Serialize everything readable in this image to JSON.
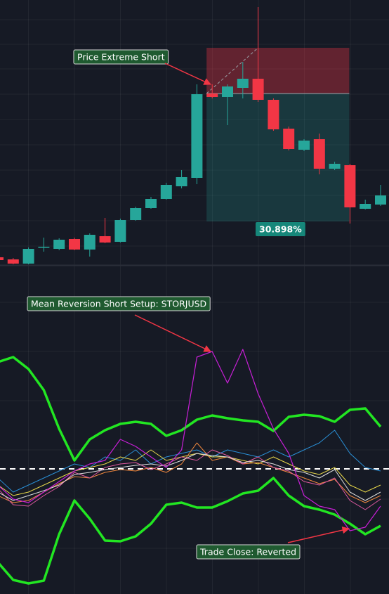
{
  "chart_data": [
    {
      "type": "candlestick",
      "annotation": "Price Extreme Short",
      "up_color": "#26a69a",
      "down_color": "#f23645",
      "ylim": [
        -2,
        375
      ],
      "open": [
        9,
        6,
        0,
        23,
        21,
        35,
        20,
        39,
        31,
        62,
        79,
        92,
        110,
        122,
        242,
        237,
        250,
        263,
        233,
        192,
        162,
        177,
        135,
        140,
        78,
        84
      ],
      "high": [
        11,
        8,
        23,
        37,
        36,
        37,
        43,
        65,
        64,
        81,
        95,
        115,
        133,
        255,
        255,
        255,
        287,
        365,
        235,
        195,
        177,
        185,
        145,
        142,
        91,
        112
      ],
      "low": [
        4,
        -1,
        -1,
        17,
        19,
        19,
        10,
        29,
        30,
        61,
        78,
        91,
        107,
        113,
        235,
        197,
        235,
        230,
        189,
        161,
        160,
        127,
        133,
        57,
        77,
        82
      ],
      "close": [
        5,
        0,
        21,
        24,
        34,
        20,
        41,
        30,
        62,
        79,
        92,
        112,
        123,
        241,
        237,
        252,
        263,
        233,
        191,
        163,
        175,
        135,
        142,
        80,
        85,
        97
      ],
      "position": {
        "entry": 242,
        "stop": 307,
        "target": 60,
        "profit": {
          "value": 30.898,
          "label": "30.898%"
        }
      }
    },
    {
      "type": "line",
      "annotations": [
        "Mean Reversion Short Setup: STORJUSD",
        "Trade Close: Reverted"
      ],
      "ylim": [
        -178,
        292
      ],
      "hline": 0,
      "series": [
        {
          "color": "#22e622",
          "width": 3.5,
          "values": [
            152,
            159,
            142,
            112,
            57,
            12,
            42,
            55,
            64,
            67,
            64,
            47,
            55,
            70,
            76,
            72,
            69,
            67,
            54,
            74,
            77,
            75,
            67,
            84,
            86,
            60
          ]
        },
        {
          "color": "#22e622",
          "width": 3.5,
          "values": [
            -133,
            -158,
            -163,
            -159,
            -93,
            -45,
            -71,
            -102,
            -103,
            -96,
            -78,
            -51,
            -48,
            -55,
            -55,
            -46,
            -35,
            -31,
            -13,
            -38,
            -53,
            -58,
            -65,
            -78,
            -93,
            -81
          ]
        },
        {
          "color": "#2a8fd6",
          "width": 1,
          "values": [
            -13,
            -33,
            -23,
            -13,
            -3,
            7,
            2,
            17,
            12,
            27,
            7,
            17,
            22,
            27,
            17,
            27,
            22,
            17,
            27,
            17,
            27,
            37,
            55,
            22,
            2,
            -3
          ]
        },
        {
          "color": "#e8d84a",
          "width": 1,
          "values": [
            -23,
            -38,
            -33,
            -23,
            -13,
            -3,
            2,
            7,
            17,
            12,
            27,
            12,
            17,
            22,
            17,
            17,
            12,
            7,
            17,
            7,
            -3,
            -8,
            2,
            -23,
            -33,
            -23
          ]
        },
        {
          "color": "#f0883e",
          "width": 1,
          "values": [
            -38,
            -48,
            -45,
            -33,
            -21,
            -11,
            -13,
            -5,
            -1,
            -3,
            2,
            -5,
            7,
            37,
            12,
            17,
            7,
            9,
            2,
            -5,
            -13,
            -21,
            -15,
            -38,
            -48,
            -38
          ]
        },
        {
          "color": "#e05aa0",
          "width": 1,
          "values": [
            -28,
            -51,
            -53,
            -38,
            -25,
            -5,
            -13,
            2,
            7,
            9,
            -1,
            7,
            17,
            12,
            27,
            19,
            7,
            17,
            2,
            -3,
            -18,
            -23,
            -13,
            -45,
            -58,
            -43
          ]
        },
        {
          "color": "#dddddd",
          "width": 1,
          "values": [
            -33,
            -45,
            -38,
            -31,
            -23,
            -8,
            -5,
            -1,
            2,
            5,
            7,
            4,
            12,
            22,
            19,
            17,
            9,
            12,
            7,
            -1,
            -5,
            -13,
            -1,
            -33,
            -45,
            -33
          ]
        },
        {
          "color": "#c71fd6",
          "width": 1.2,
          "values": [
            -23,
            -43,
            -48,
            -33,
            -18,
            -3,
            7,
            12,
            42,
            32,
            17,
            2,
            27,
            159,
            167,
            122,
            170,
            107,
            57,
            22,
            -38,
            -53,
            -58,
            -88,
            -83,
            -53
          ]
        }
      ]
    }
  ]
}
